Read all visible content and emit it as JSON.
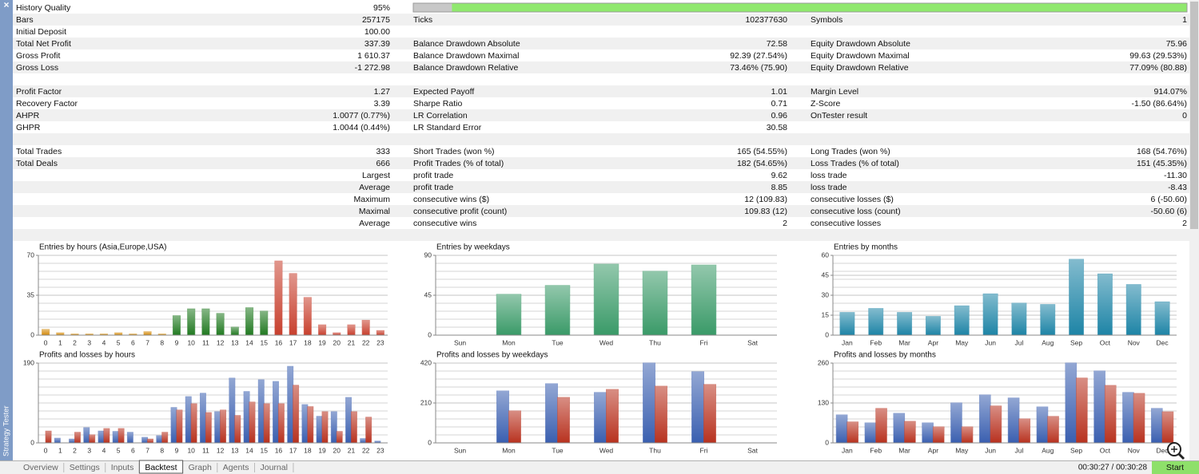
{
  "panel": {
    "close": "×",
    "title": "Strategy Tester"
  },
  "rows": [
    {
      "left": {
        "label": "History Quality",
        "value": "95%"
      },
      "quality": 95
    },
    {
      "left": {
        "label": "Bars",
        "value": "257175"
      },
      "mid": {
        "label": "Ticks",
        "value": "102377630"
      },
      "right": {
        "label": "Symbols",
        "value": "1"
      }
    },
    {
      "left": {
        "label": "Initial Deposit",
        "value": "100.00"
      }
    },
    {
      "left": {
        "label": "Total Net Profit",
        "value": "337.39"
      },
      "mid": {
        "label": "Balance Drawdown Absolute",
        "value": "72.58"
      },
      "right": {
        "label": "Equity Drawdown Absolute",
        "value": "75.96"
      }
    },
    {
      "left": {
        "label": "Gross Profit",
        "value": "1 610.37"
      },
      "mid": {
        "label": "Balance Drawdown Maximal",
        "value": "92.39 (27.54%)"
      },
      "right": {
        "label": "Equity Drawdown Maximal",
        "value": "99.63 (29.53%)"
      }
    },
    {
      "left": {
        "label": "Gross Loss",
        "value": "-1 272.98"
      },
      "mid": {
        "label": "Balance Drawdown Relative",
        "value": "73.46% (75.90)"
      },
      "right": {
        "label": "Equity Drawdown Relative",
        "value": "77.09% (80.88)"
      }
    },
    {},
    {
      "left": {
        "label": "Profit Factor",
        "value": "1.27"
      },
      "mid": {
        "label": "Expected Payoff",
        "value": "1.01"
      },
      "right": {
        "label": "Margin Level",
        "value": "914.07%"
      }
    },
    {
      "left": {
        "label": "Recovery Factor",
        "value": "3.39"
      },
      "mid": {
        "label": "Sharpe Ratio",
        "value": "0.71"
      },
      "right": {
        "label": "Z-Score",
        "value": "-1.50 (86.64%)"
      }
    },
    {
      "left": {
        "label": "AHPR",
        "value": "1.0077 (0.77%)"
      },
      "mid": {
        "label": "LR Correlation",
        "value": "0.96"
      },
      "right": {
        "label": "OnTester result",
        "value": "0"
      }
    },
    {
      "left": {
        "label": "GHPR",
        "value": "1.0044 (0.44%)"
      },
      "mid": {
        "label": "LR Standard Error",
        "value": "30.58"
      }
    },
    {},
    {
      "left": {
        "label": "Total Trades",
        "value": "333"
      },
      "mid": {
        "label": "Short Trades (won %)",
        "value": "165 (54.55%)"
      },
      "right": {
        "label": "Long Trades (won %)",
        "value": "168 (54.76%)"
      }
    },
    {
      "left": {
        "label": "Total Deals",
        "value": "666"
      },
      "mid": {
        "label": "Profit Trades (% of total)",
        "value": "182 (54.65%)"
      },
      "right": {
        "label": "Loss Trades (% of total)",
        "value": "151 (45.35%)"
      }
    },
    {
      "left": {
        "caption": "Largest"
      },
      "mid": {
        "label": "profit trade",
        "value": "9.62"
      },
      "right": {
        "label": "loss trade",
        "value": "-11.30"
      }
    },
    {
      "left": {
        "caption": "Average"
      },
      "mid": {
        "label": "profit trade",
        "value": "8.85"
      },
      "right": {
        "label": "loss trade",
        "value": "-8.43"
      }
    },
    {
      "left": {
        "caption": "Maximum"
      },
      "mid": {
        "label": "consecutive wins ($)",
        "value": "12 (109.83)"
      },
      "right": {
        "label": "consecutive losses ($)",
        "value": "6 (-50.60)"
      }
    },
    {
      "left": {
        "caption": "Maximal"
      },
      "mid": {
        "label": "consecutive profit (count)",
        "value": "109.83 (12)"
      },
      "right": {
        "label": "consecutive loss (count)",
        "value": "-50.60 (6)"
      }
    },
    {
      "left": {
        "caption": "Average"
      },
      "mid": {
        "label": "consecutive wins",
        "value": "2"
      },
      "right": {
        "label": "consecutive losses",
        "value": "2"
      }
    },
    {}
  ],
  "chart_data": [
    {
      "type": "bar",
      "title": "Entries by hours (Asia,Europe,USA)",
      "categories": [
        "0",
        "1",
        "2",
        "3",
        "4",
        "5",
        "6",
        "7",
        "8",
        "9",
        "10",
        "11",
        "12",
        "13",
        "14",
        "15",
        "16",
        "17",
        "18",
        "19",
        "20",
        "21",
        "22",
        "23"
      ],
      "ylim": [
        0,
        70
      ],
      "yticks": [
        0,
        35,
        70
      ],
      "minor_yticks": [
        7,
        14,
        21,
        28,
        42,
        49,
        56,
        63
      ],
      "grid": true,
      "series": [
        {
          "values": [
            5,
            2,
            1,
            1,
            1,
            2,
            1,
            3,
            1,
            17,
            23,
            23,
            19,
            7,
            24,
            21,
            65,
            54,
            33,
            9,
            2,
            9,
            13,
            4
          ],
          "colors": [
            "#d48a0a",
            "#d48a0a",
            "#d48a0a",
            "#d48a0a",
            "#d48a0a",
            "#d48a0a",
            "#d48a0a",
            "#d48a0a",
            "#d48a0a",
            "#217a21",
            "#217a21",
            "#217a21",
            "#217a21",
            "#217a21",
            "#217a21",
            "#217a21",
            "#c8402e",
            "#c8402e",
            "#c8402e",
            "#c8402e",
            "#c8402e",
            "#c8402e",
            "#c8402e",
            "#c8402e"
          ]
        }
      ]
    },
    {
      "type": "bar",
      "title": "Entries by weekdays",
      "categories": [
        "Sun",
        "Mon",
        "Tue",
        "Wed",
        "Thu",
        "Fri",
        "Sat"
      ],
      "ylim": [
        0,
        90
      ],
      "yticks": [
        0,
        45,
        90
      ],
      "minor_yticks": [
        9,
        18,
        27,
        36,
        54,
        63,
        72,
        81
      ],
      "grid": true,
      "series": [
        {
          "color": "#3a9a68",
          "values": [
            0,
            46,
            56,
            80,
            72,
            79,
            0
          ]
        }
      ]
    },
    {
      "type": "bar",
      "title": "Entries by months",
      "categories": [
        "Jan",
        "Feb",
        "Mar",
        "Apr",
        "May",
        "Jun",
        "Jul",
        "Aug",
        "Sep",
        "Oct",
        "Nov",
        "Dec"
      ],
      "ylim": [
        0,
        60
      ],
      "yticks": [
        0,
        15,
        30,
        45,
        60
      ],
      "minor_yticks": [
        6,
        12,
        18,
        24,
        36,
        42,
        48,
        54
      ],
      "grid": true,
      "series": [
        {
          "color": "#1d84a6",
          "values": [
            17,
            20,
            17,
            14,
            22,
            31,
            24,
            23,
            57,
            46,
            38,
            25
          ]
        }
      ]
    },
    {
      "type": "bar",
      "title": "Profits and losses by hours",
      "categories": [
        "0",
        "1",
        "2",
        "3",
        "4",
        "5",
        "6",
        "7",
        "8",
        "9",
        "10",
        "11",
        "12",
        "13",
        "14",
        "15",
        "16",
        "17",
        "18",
        "19",
        "20",
        "21",
        "22",
        "23"
      ],
      "ylim": [
        0,
        190
      ],
      "yticks": [
        0,
        190
      ],
      "minor_yticks": [
        19,
        38,
        57,
        76,
        95,
        114,
        133,
        152,
        171
      ],
      "grid": true,
      "series": [
        {
          "color": "#3a5fb0",
          "values": [
            0,
            11,
            9,
            36,
            28,
            27,
            25,
            13,
            17,
            84,
            110,
            118,
            74,
            154,
            122,
            150,
            146,
            182,
            91,
            63,
            74,
            108,
            10,
            4
          ]
        },
        {
          "color": "#b8321f",
          "values": [
            28,
            0,
            25,
            19,
            34,
            34,
            0,
            9,
            25,
            78,
            93,
            72,
            78,
            65,
            97,
            93,
            93,
            137,
            86,
            74,
            27,
            74,
            61,
            0
          ]
        }
      ]
    },
    {
      "type": "bar",
      "title": "Profits and losses by weekdays",
      "categories": [
        "Sun",
        "Mon",
        "Tue",
        "Wed",
        "Thu",
        "Fri",
        "Sat"
      ],
      "ylim": [
        0,
        420
      ],
      "yticks": [
        0,
        210,
        420
      ],
      "minor_yticks": [
        42,
        84,
        126,
        168,
        252,
        294,
        336,
        378
      ],
      "grid": true,
      "series": [
        {
          "color": "#3a5fb0",
          "values": [
            0,
            273,
            311,
            265,
            420,
            374,
            0
          ]
        },
        {
          "color": "#b8321f",
          "values": [
            0,
            168,
            239,
            281,
            298,
            307,
            0
          ]
        }
      ]
    },
    {
      "type": "bar",
      "title": "Profits and losses by months",
      "categories": [
        "Jan",
        "Feb",
        "Mar",
        "Apr",
        "May",
        "Jun",
        "Jul",
        "Aug",
        "Sep",
        "Oct",
        "Nov",
        "Dec"
      ],
      "ylim": [
        0,
        260
      ],
      "yticks": [
        0,
        130,
        260
      ],
      "minor_yticks": [
        26,
        52,
        78,
        104,
        156,
        182,
        208,
        234
      ],
      "grid": true,
      "series": [
        {
          "color": "#3a5fb0",
          "values": [
            91,
            65,
            96,
            65,
            130,
            156,
            146,
            117,
            260,
            234,
            164,
            112
          ]
        },
        {
          "color": "#b8321f",
          "values": [
            68,
            112,
            70,
            52,
            52,
            120,
            78,
            86,
            211,
            187,
            161,
            101
          ]
        }
      ]
    }
  ],
  "footer": {
    "tabs": [
      "Overview",
      "Settings",
      "Inputs",
      "Backtest",
      "Graph",
      "Agents",
      "Journal"
    ],
    "active_tab": 3,
    "time": "00:30:27 / 00:30:28",
    "start": "Start"
  }
}
